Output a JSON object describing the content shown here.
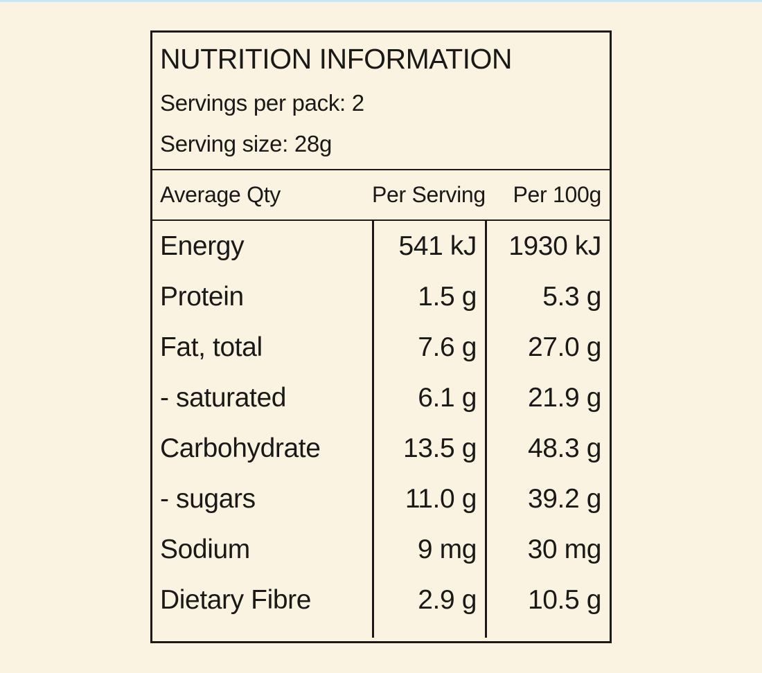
{
  "page": {
    "background_color": "#faf3e2",
    "top_strip_color": "#c9e6f4",
    "border_color": "#1a1917",
    "text_color": "#1a1917"
  },
  "label": {
    "title": "NUTRITION INFORMATION",
    "servings_per_pack": "Servings per pack: 2",
    "serving_size": "Serving size: 28g",
    "columns": [
      "Average Qty",
      "Per Serving",
      "Per 100g"
    ],
    "rows": [
      {
        "name": "Energy",
        "per_serving": "541 kJ",
        "per_100g": "1930 kJ"
      },
      {
        "name": "Protein",
        "per_serving": "1.5 g",
        "per_100g": "5.3 g"
      },
      {
        "name": "Fat, total",
        "per_serving": "7.6 g",
        "per_100g": "27.0 g"
      },
      {
        "name": "- saturated",
        "per_serving": "6.1 g",
        "per_100g": "21.9 g"
      },
      {
        "name": "Carbohydrate",
        "per_serving": "13.5 g",
        "per_100g": "48.3 g"
      },
      {
        "name": "- sugars",
        "per_serving": "11.0 g",
        "per_100g": "39.2 g"
      },
      {
        "name": "Sodium",
        "per_serving": "9 mg",
        "per_100g": "30 mg"
      },
      {
        "name": "Dietary Fibre",
        "per_serving": "2.9 g",
        "per_100g": "10.5 g"
      }
    ]
  }
}
